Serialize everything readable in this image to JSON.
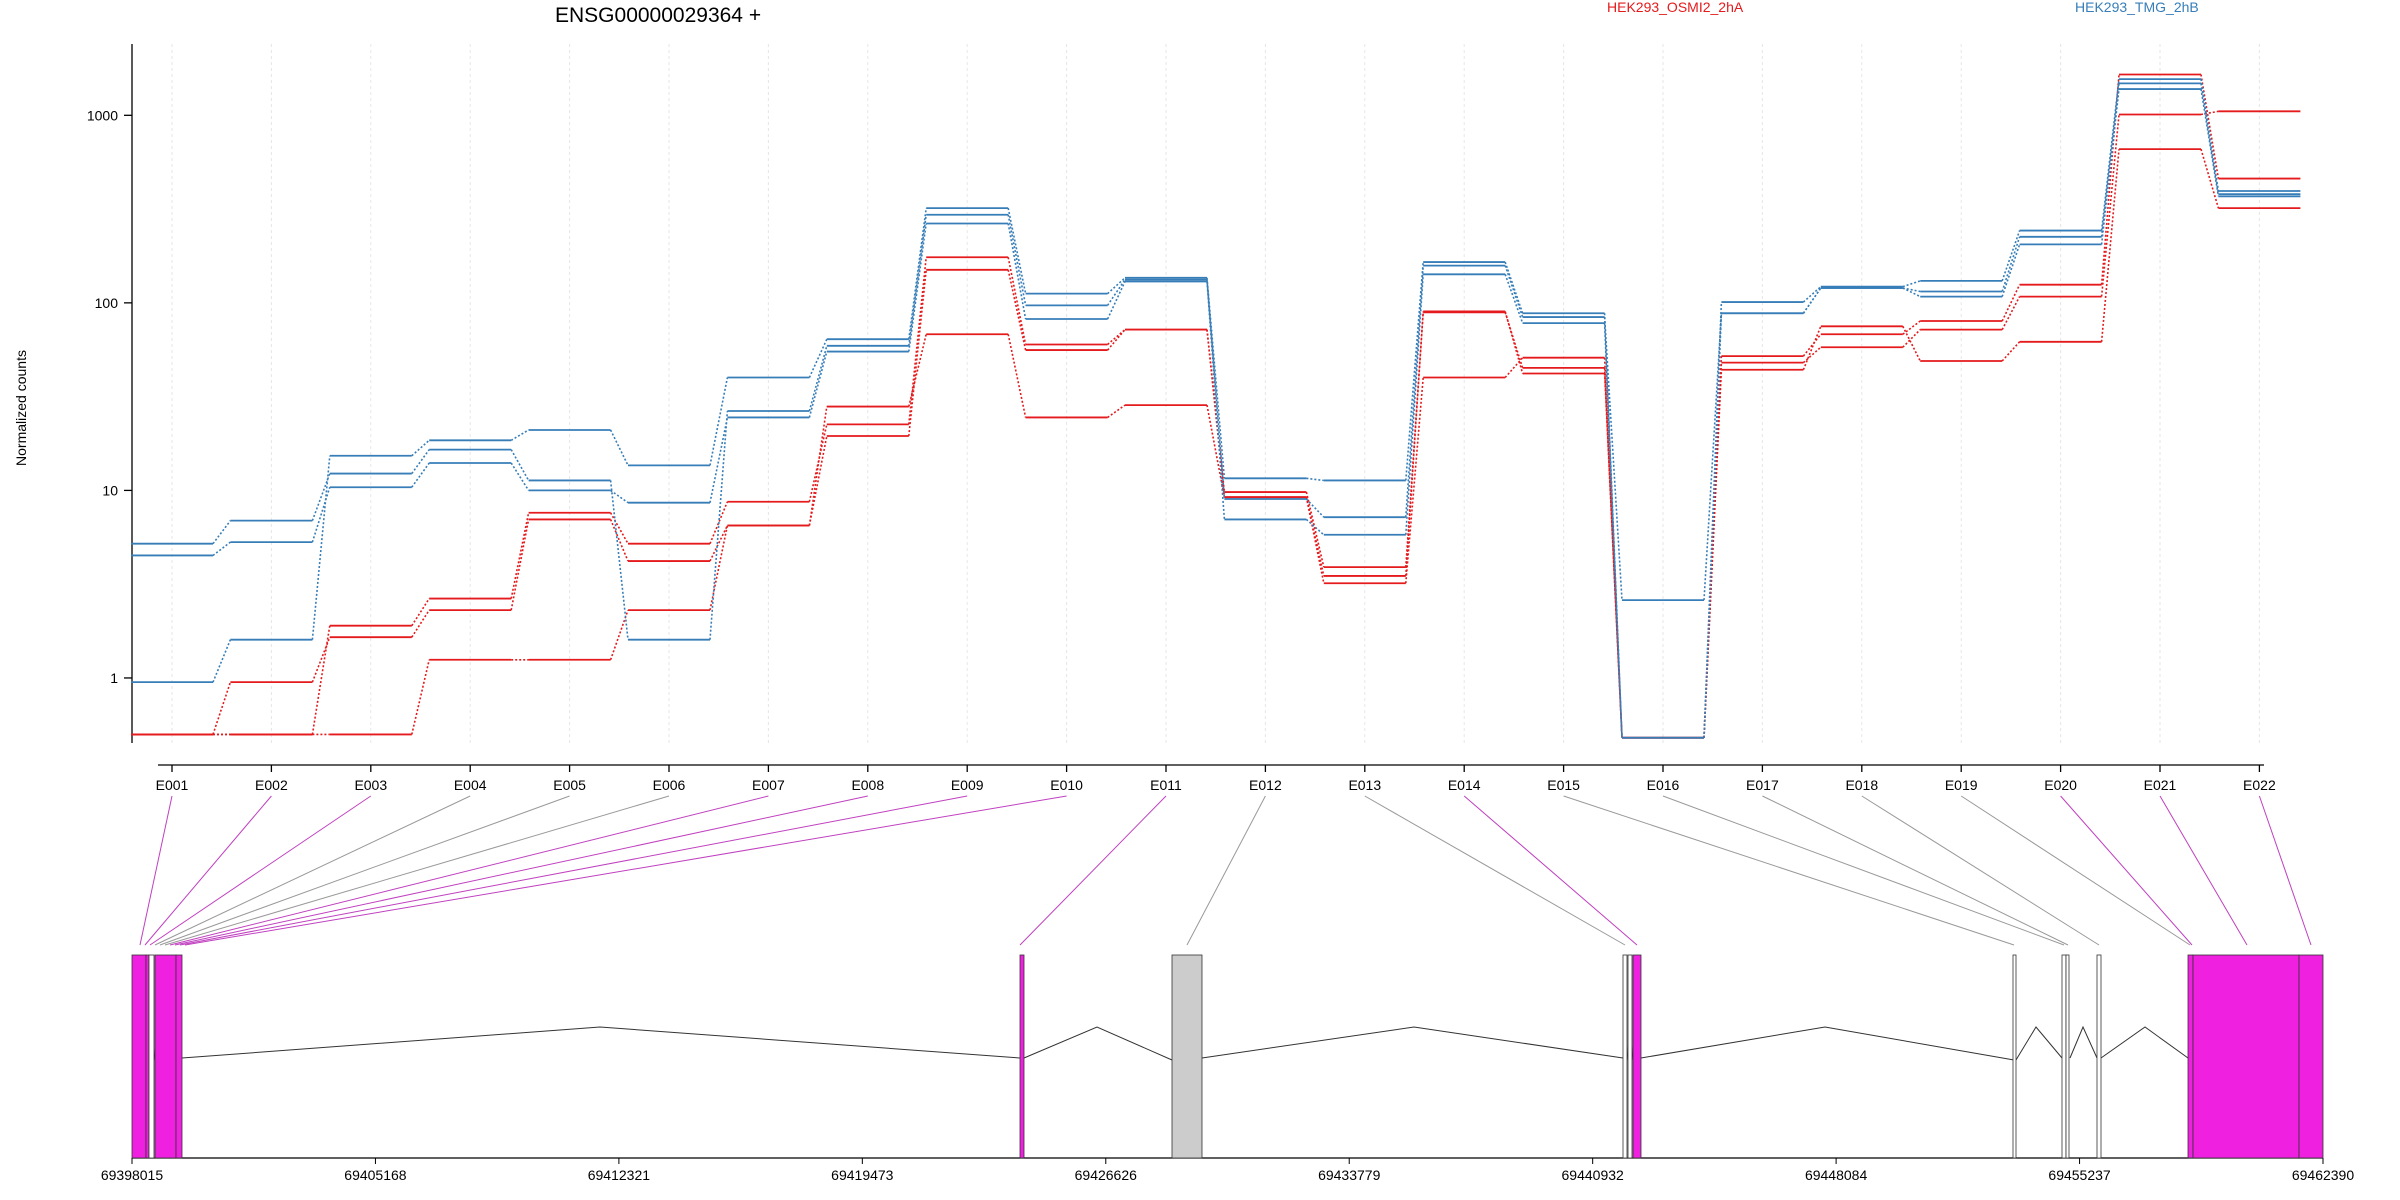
{
  "gene_title": "ENSG00000029364 +",
  "legend": [
    {
      "label": "HEK293_OSMI2_2hA",
      "color": "#e41a1c"
    },
    {
      "label": "HEK293_TMG_2hB",
      "color": "#377eb8"
    }
  ],
  "chart_data": {
    "type": "line",
    "scale": "log",
    "ylabel": "Normalized counts",
    "yticks": [
      1,
      10,
      100,
      1000
    ],
    "ylim": [
      0.45,
      2400
    ],
    "categories": [
      "E001",
      "E002",
      "E003",
      "E004",
      "E005",
      "E006",
      "E007",
      "E008",
      "E009",
      "E010",
      "E011",
      "E012",
      "E013",
      "E014",
      "E015",
      "E016",
      "E017",
      "E018",
      "E019",
      "E020",
      "E021",
      "E022"
    ],
    "series": [
      {
        "group": 0,
        "values": [
          0.5,
          0.95,
          1.65,
          2.3,
          7.0,
          4.2,
          6.5,
          19.5,
          150,
          56,
          72,
          9.2,
          3.5,
          90,
          42,
          0.48,
          48,
          58,
          72,
          108,
          1010,
          1050
        ]
      },
      {
        "group": 0,
        "values": [
          0.5,
          0.5,
          1.9,
          2.65,
          7.6,
          5.2,
          8.7,
          22.5,
          175,
          60,
          72,
          9.8,
          3.9,
          89,
          45,
          0.48,
          52,
          68,
          80,
          125,
          1650,
          460
        ]
      },
      {
        "group": 0,
        "values": [
          0.5,
          0.5,
          0.5,
          1.25,
          1.25,
          2.3,
          6.5,
          28,
          68,
          24.5,
          28.5,
          9.2,
          3.2,
          40,
          51,
          0.48,
          44,
          75,
          49,
          62,
          660,
          320
        ]
      },
      {
        "group": 1,
        "values": [
          4.5,
          5.3,
          10.4,
          14.0,
          10.0,
          8.6,
          24.5,
          55,
          265,
          82,
          130,
          7.0,
          5.8,
          142,
          78,
          0.48,
          88,
          120,
          108,
          205,
          1380,
          370
        ]
      },
      {
        "group": 1,
        "values": [
          5.2,
          6.9,
          12.3,
          16.5,
          11.3,
          1.6,
          26.5,
          59,
          295,
          97,
          133,
          9.0,
          7.2,
          158,
          84,
          2.6,
          88,
          120,
          115,
          225,
          1480,
          380
        ]
      },
      {
        "group": 1,
        "values": [
          0.95,
          1.6,
          15.3,
          18.5,
          21.0,
          13.6,
          40,
          64,
          320,
          112,
          136,
          11.6,
          11.3,
          165,
          88,
          0.48,
          101,
          122,
          131,
          243,
          1560,
          395
        ]
      }
    ]
  },
  "genome": {
    "coord_ticks": [
      "69398015",
      "69405168",
      "69412321",
      "69419473",
      "69426626",
      "69433779",
      "69440932",
      "69448084",
      "69455237",
      "69462390"
    ]
  }
}
